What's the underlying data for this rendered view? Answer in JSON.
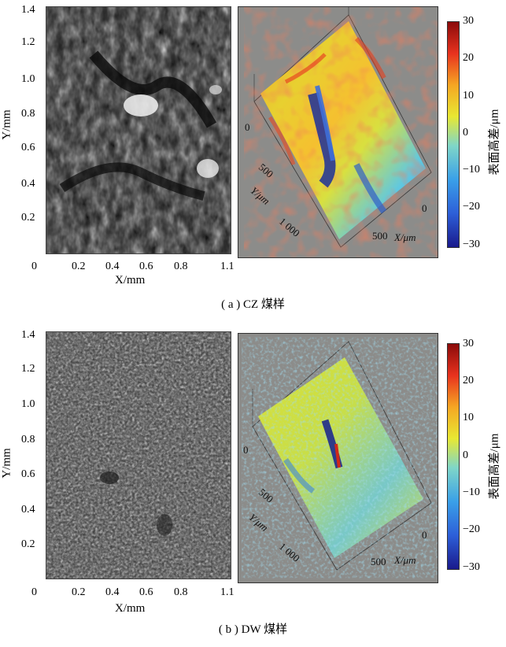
{
  "panels": [
    {
      "caption": "( a ) CZ 煤样",
      "y_ticks": [
        "1.4",
        "1.2",
        "1.0",
        "0.8",
        "0.6",
        "0.4",
        "0.2"
      ],
      "x_ticks": [
        "0",
        "0.2",
        "0.4",
        "0.6",
        "0.8",
        "1.1"
      ],
      "x_label": "X/mm",
      "y_label": "Y/mm",
      "surface_y_ticks": [
        "0",
        "500",
        "1 000"
      ],
      "surface_y_label": "Y/μm",
      "surface_x_ticks": [
        "0",
        "500"
      ],
      "surface_x_label": "X/μm",
      "colorbar_ticks": [
        "30",
        "20",
        "10",
        "0",
        "−10",
        "−20",
        "−30"
      ],
      "colorbar_label": "表面高差/μm"
    },
    {
      "caption": "( b ) DW 煤样",
      "y_ticks": [
        "1.4",
        "1.2",
        "1.0",
        "0.8",
        "0.6",
        "0.4",
        "0.2"
      ],
      "x_ticks": [
        "0",
        "0.2",
        "0.4",
        "0.6",
        "0.8",
        "1.1"
      ],
      "x_label": "X/mm",
      "y_label": "Y/mm",
      "surface_y_ticks": [
        "0",
        "500",
        "1 000"
      ],
      "surface_y_label": "Y/μm",
      "surface_x_ticks": [
        "0",
        "500"
      ],
      "surface_x_label": "X/μm",
      "colorbar_ticks": [
        "30",
        "20",
        "10",
        "0",
        "−10",
        "−20",
        "−30"
      ],
      "colorbar_label": "表面高差/μm"
    }
  ]
}
